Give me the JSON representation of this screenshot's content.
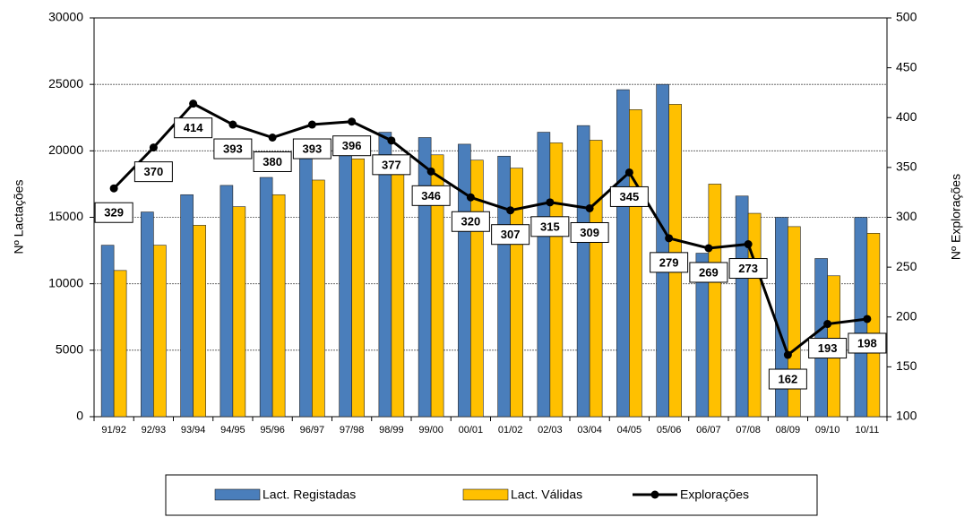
{
  "chart_data": {
    "type": "bar",
    "y_label": "Nº Lactações",
    "y2_label": "Nº Explorações",
    "categories": [
      "91/92",
      "92/93",
      "93/94",
      "94/95",
      "95/96",
      "96/97",
      "97/98",
      "98/99",
      "99/00",
      "00/01",
      "01/02",
      "02/03",
      "03/04",
      "04/05",
      "05/06",
      "06/07",
      "07/08",
      "08/09",
      "09/10",
      "10/11"
    ],
    "series": [
      {
        "name": "Lact. Registadas",
        "color": "#4a7ebb",
        "values": [
          12900,
          15400,
          16700,
          17400,
          18000,
          19700,
          20000,
          21400,
          21000,
          20500,
          19600,
          21400,
          21900,
          24600,
          25000,
          12300,
          16600,
          15000,
          11900,
          15000
        ]
      },
      {
        "name": "Lact. Válidas",
        "color": "#ffc000",
        "values": [
          11000,
          12900,
          14400,
          15800,
          16700,
          17800,
          19400,
          18700,
          19700,
          19300,
          18700,
          20600,
          20800,
          23100,
          23500,
          17500,
          15300,
          14300,
          10600,
          13800
        ]
      },
      {
        "name": "Explorações",
        "color": "#000000",
        "type": "line",
        "axis": "y2",
        "values": [
          329,
          370,
          414,
          393,
          380,
          393,
          396,
          377,
          346,
          320,
          307,
          315,
          309,
          345,
          279,
          269,
          273,
          162,
          193,
          198
        ]
      }
    ],
    "ylim": [
      0,
      30000
    ],
    "yticks": [
      0,
      5000,
      10000,
      15000,
      20000,
      25000,
      30000
    ],
    "y2lim": [
      100,
      500
    ],
    "y2ticks": [
      100,
      150,
      200,
      250,
      300,
      350,
      400,
      450,
      500
    ],
    "grid": true
  }
}
